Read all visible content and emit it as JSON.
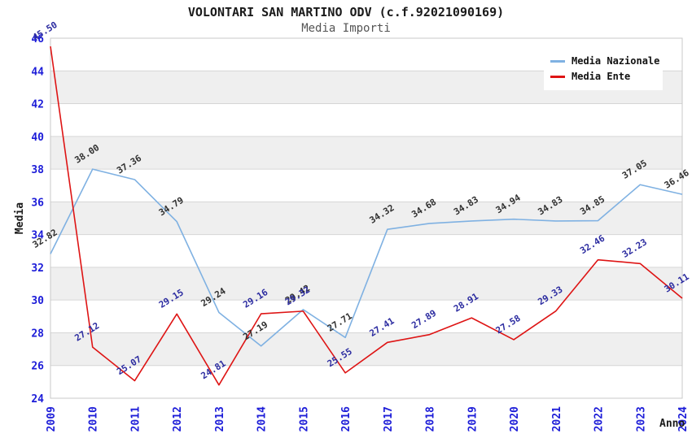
{
  "header": {
    "title": "VOLONTARI SAN MARTINO ODV (c.f.92021090169)",
    "subtitle": "Media Importi"
  },
  "legend": {
    "items": [
      {
        "label": "Media Nazionale",
        "color": "#7FB1E2"
      },
      {
        "label": "Media Ente",
        "color": "#DE1414"
      }
    ]
  },
  "chart_data": {
    "type": "line",
    "title": "VOLONTARI SAN MARTINO ODV (c.f.92021090169)",
    "subtitle": "Media Importi",
    "xlabel": "Anno",
    "ylabel": "Media",
    "x": [
      2009,
      2010,
      2011,
      2012,
      2013,
      2014,
      2015,
      2016,
      2017,
      2018,
      2019,
      2020,
      2021,
      2022,
      2023,
      2024
    ],
    "series": [
      {
        "name": "Media Nazionale",
        "color": "#7FB1E2",
        "label_color": "#303030",
        "values": [
          32.82,
          38.0,
          37.36,
          34.79,
          29.24,
          27.19,
          29.42,
          27.71,
          34.32,
          34.68,
          34.83,
          34.94,
          34.83,
          34.85,
          37.05,
          36.46
        ]
      },
      {
        "name": "Media Ente",
        "color": "#DE1414",
        "label_color": "#2B2BA0",
        "values": [
          45.5,
          27.12,
          25.07,
          29.15,
          24.81,
          29.16,
          29.32,
          25.55,
          27.41,
          27.89,
          28.91,
          27.58,
          29.33,
          32.46,
          32.23,
          30.11
        ]
      }
    ],
    "ylim": [
      24,
      46
    ],
    "ytick_step": 2,
    "grid": "horizontal",
    "legend_position": "top-right",
    "bands": [
      [
        26,
        28
      ],
      [
        30,
        32
      ],
      [
        34,
        36
      ],
      [
        38,
        40
      ],
      [
        42,
        44
      ]
    ],
    "colors": {
      "tick_label": "#1C1CD8",
      "band_fill": "#EFEFEF",
      "grid_line": "#D6D6D6",
      "plot_border": "#C8C8C8",
      "axis_title": "#1A1A1A"
    }
  }
}
